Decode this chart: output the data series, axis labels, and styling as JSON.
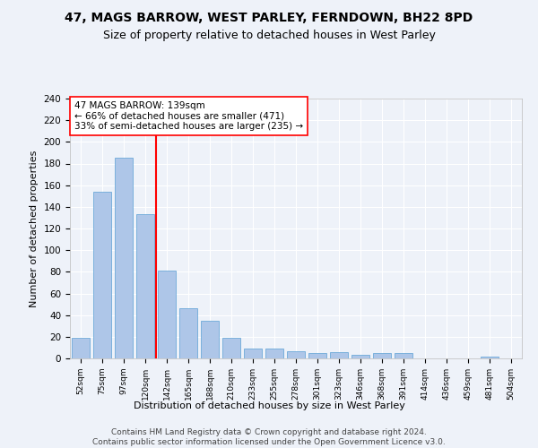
{
  "title1": "47, MAGS BARROW, WEST PARLEY, FERNDOWN, BH22 8PD",
  "title2": "Size of property relative to detached houses in West Parley",
  "xlabel": "Distribution of detached houses by size in West Parley",
  "ylabel": "Number of detached properties",
  "footer1": "Contains HM Land Registry data © Crown copyright and database right 2024.",
  "footer2": "Contains public sector information licensed under the Open Government Licence v3.0.",
  "annotation_line1": "47 MAGS BARROW: 139sqm",
  "annotation_line2": "← 66% of detached houses are smaller (471)",
  "annotation_line3": "33% of semi-detached houses are larger (235) →",
  "bar_labels": [
    "52sqm",
    "75sqm",
    "97sqm",
    "120sqm",
    "142sqm",
    "165sqm",
    "188sqm",
    "210sqm",
    "233sqm",
    "255sqm",
    "278sqm",
    "301sqm",
    "323sqm",
    "346sqm",
    "368sqm",
    "391sqm",
    "414sqm",
    "436sqm",
    "459sqm",
    "481sqm",
    "504sqm"
  ],
  "bar_values": [
    19,
    154,
    185,
    133,
    81,
    46,
    35,
    19,
    9,
    9,
    7,
    5,
    6,
    3,
    5,
    5,
    0,
    0,
    0,
    2,
    0
  ],
  "bar_color": "#aec6e8",
  "bar_edge_color": "#5a9fd4",
  "vline_x": 3.5,
  "vline_color": "red",
  "ylim": [
    0,
    240
  ],
  "yticks": [
    0,
    20,
    40,
    60,
    80,
    100,
    120,
    140,
    160,
    180,
    200,
    220,
    240
  ],
  "title1_fontsize": 10,
  "title2_fontsize": 9,
  "xlabel_fontsize": 8,
  "ylabel_fontsize": 8,
  "annotation_fontsize": 7.5,
  "footer_fontsize": 6.5,
  "background_color": "#eef2f9",
  "plot_background": "#eef2f9",
  "grid_color": "#ffffff"
}
